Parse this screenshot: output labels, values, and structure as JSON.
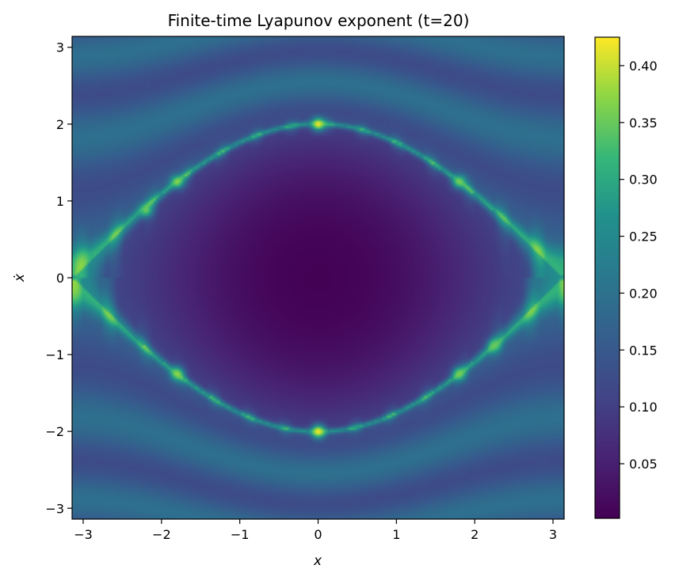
{
  "chart_data": {
    "type": "heatmap",
    "title": "Finite-time Lyapunov exponent (t=20)",
    "xlabel": "x",
    "ylabel": "ẋ",
    "xlim": [
      -3.14159,
      3.14159
    ],
    "ylim": [
      -3.14159,
      3.14159
    ],
    "x_ticks": [
      -3,
      -2,
      -1,
      0,
      1,
      2,
      3
    ],
    "y_ticks": [
      -3,
      -2,
      -1,
      0,
      1,
      2,
      3
    ],
    "x_tick_labels": [
      "−3",
      "−2",
      "−1",
      "0",
      "1",
      "2",
      "3"
    ],
    "y_tick_labels": [
      "−3",
      "−2",
      "−1",
      "0",
      "1",
      "2",
      "3"
    ],
    "colormap": "viridis",
    "colorbar_range": [
      0.002,
      0.425
    ],
    "colorbar_ticks": [
      0.05,
      0.1,
      0.15,
      0.2,
      0.25,
      0.3,
      0.35,
      0.4
    ],
    "colorbar_tick_labels": [
      "0.05",
      "0.10",
      "0.15",
      "0.20",
      "0.25",
      "0.30",
      "0.35",
      "0.40"
    ],
    "grid": false,
    "hotspots": [
      {
        "x": 0.0,
        "y": 2.0,
        "value": 0.42
      },
      {
        "x": 0.0,
        "y": -2.0,
        "value": 0.42
      },
      {
        "x": -1.8,
        "y": 1.25,
        "value": 0.37
      },
      {
        "x": 1.8,
        "y": 1.25,
        "value": 0.36
      },
      {
        "x": -1.8,
        "y": -1.25,
        "value": 0.37
      },
      {
        "x": 1.8,
        "y": -1.25,
        "value": 0.36
      },
      {
        "x": -2.2,
        "y": 0.88,
        "value": 0.35
      },
      {
        "x": 2.25,
        "y": -0.88,
        "value": 0.35
      }
    ]
  }
}
